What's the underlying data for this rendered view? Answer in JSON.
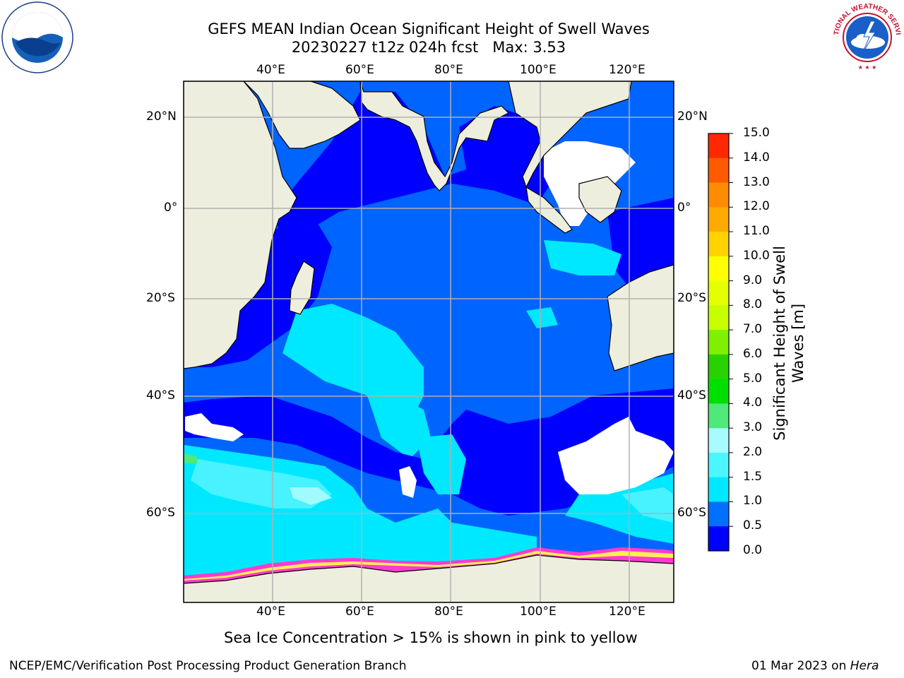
{
  "title": {
    "line1": "GEFS MEAN Indian Ocean Significant Height of Swell Waves",
    "line2": "20230227 t12z 024h fcst   Max: 3.53"
  },
  "map": {
    "lon_labels": [
      "40°E",
      "60°E",
      "80°E",
      "100°E",
      "120°E"
    ],
    "lat_labels": [
      "20°N",
      "0°",
      "20°S",
      "40°S",
      "60°S"
    ],
    "land_color": "#eeeedf",
    "grid_color": "#b0b0b0",
    "ocean_palette": {
      "0.0-0.5": "#0000ff",
      "0.5-1.0": "#0064ff",
      "1.0-1.5": "#00e8ff",
      "1.5-2.0": "#48f2ff",
      "2.0-3.0": "#a0fbff",
      "3.0-4.0": "#50e878",
      "ice": "#ff3ad0",
      "ice_edge": "#ffee50"
    }
  },
  "colorbar": {
    "title": "Significant Height of Swell Waves [m]",
    "ticks": [
      "15.0",
      "14.0",
      "13.0",
      "12.0",
      "11.0",
      "10.0",
      "9.0",
      "8.0",
      "7.0",
      "6.0",
      "5.0",
      "4.0",
      "3.0",
      "2.0",
      "1.5",
      "1.0",
      "0.5",
      "0.0"
    ],
    "colors": [
      "#ff0000",
      "#ff2800",
      "#ff5a00",
      "#ff8c00",
      "#ffaa00",
      "#ffd200",
      "#ffff00",
      "#e6ff00",
      "#c8ff00",
      "#7ef000",
      "#28d200",
      "#00e000",
      "#4fe87a",
      "#a8fbff",
      "#4cf6ff",
      "#00e8ff",
      "#0070ff",
      "#0000ff"
    ]
  },
  "subtitle": "Sea Ice Concentration > 15% is shown in pink to yellow",
  "footer": {
    "left": "NCEP/EMC/Verification Post Processing Product Generation Branch",
    "right_prefix": "01 Mar 2023 on ",
    "right_host": "Hera"
  },
  "logos": {
    "noaa": "NOAA",
    "nws": "NATIONAL WEATHER SERVICE"
  }
}
